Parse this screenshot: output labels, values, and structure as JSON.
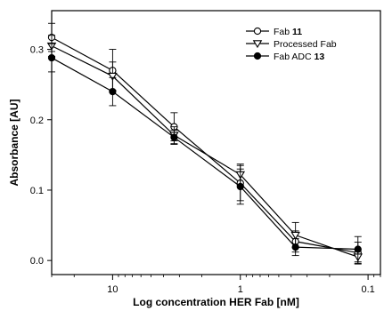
{
  "chart_data": {
    "type": "line",
    "xlabel": "Log concentration HER Fab [nM]",
    "ylabel": "Absorbance [AU]",
    "x_scale": "log",
    "x_reversed": true,
    "xlim": [
      30,
      0.08
    ],
    "ylim": [
      -0.02,
      0.355
    ],
    "x_ticks": [
      {
        "value": 10,
        "label": "10"
      },
      {
        "value": 1,
        "label": "1"
      },
      {
        "value": 0.1,
        "label": "0.1"
      }
    ],
    "y_ticks": [
      {
        "value": 0.0,
        "label": "0.0"
      },
      {
        "value": 0.1,
        "label": "0.1"
      },
      {
        "value": 0.2,
        "label": "0.2"
      },
      {
        "value": 0.3,
        "label": "0.3"
      }
    ],
    "x": [
      30,
      10,
      3.3,
      1,
      0.37,
      0.12
    ],
    "series": [
      {
        "name": "Fab 11",
        "name_plain": "Fab ",
        "name_bold": "11",
        "marker": "open-circle",
        "values": [
          0.317,
          0.27,
          0.19,
          0.11,
          0.027,
          0.011
        ],
        "errors": [
          0.02,
          0.03,
          0.02,
          0.025,
          0.015,
          0.015
        ]
      },
      {
        "name": "Processed Fab",
        "name_plain": "Processed Fab",
        "name_bold": "",
        "marker": "open-triangle-down",
        "values": [
          0.305,
          0.262,
          0.178,
          0.122,
          0.036,
          0.005
        ],
        "errors": [
          0.015,
          0.02,
          0.012,
          0.015,
          0.018,
          0.01
        ]
      },
      {
        "name": "Fab ADC 13",
        "name_plain": "Fab ADC ",
        "name_bold": "13",
        "marker": "filled-circle",
        "values": [
          0.288,
          0.24,
          0.175,
          0.105,
          0.019,
          0.016
        ],
        "errors": [
          0.02,
          0.02,
          0.01,
          0.025,
          0.012,
          0.018
        ]
      }
    ],
    "legend": "top-right",
    "grid": false
  }
}
